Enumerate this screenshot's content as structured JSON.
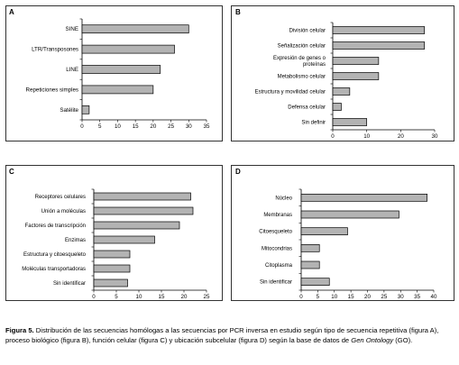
{
  "chart_data": [
    {
      "panel": "A",
      "type": "bar",
      "orientation": "horizontal",
      "categories": [
        "SINE",
        "LTR/Transposones",
        "LINE",
        "Repeticiones simples",
        "Satélite"
      ],
      "values": [
        30,
        26,
        22,
        20,
        2
      ],
      "xlim": [
        0,
        35
      ],
      "xticks": [
        0,
        5,
        10,
        15,
        20,
        25,
        30,
        35
      ],
      "bar_color": "#b3b3b3"
    },
    {
      "panel": "B",
      "type": "bar",
      "orientation": "horizontal",
      "categories": [
        "División celular",
        "Señalización celular",
        "Expresión de genes o proteínas",
        "Metabolismo celular",
        "Estructura y movilidad celular",
        "Defensa celular",
        "Sin definir"
      ],
      "values": [
        27,
        27,
        13.5,
        13.5,
        5,
        2.5,
        10
      ],
      "xlim": [
        0,
        30
      ],
      "xticks": [
        0,
        10,
        20,
        30
      ],
      "bar_color": "#b3b3b3"
    },
    {
      "panel": "C",
      "type": "bar",
      "orientation": "horizontal",
      "categories": [
        "Receptores celulares",
        "Unión a moléculas",
        "Factores de transcripción",
        "Enzimas",
        "Estructura y citoesqueleto",
        "Moléculas transportadoras",
        "Sin identificar"
      ],
      "values": [
        21.5,
        22,
        19,
        13.5,
        8,
        8,
        7.5
      ],
      "xlim": [
        0,
        25
      ],
      "xticks": [
        0,
        5,
        10,
        15,
        20,
        25
      ],
      "bar_color": "#b3b3b3"
    },
    {
      "panel": "D",
      "type": "bar",
      "orientation": "horizontal",
      "categories": [
        "Núcleo",
        "Membranas",
        "Citoesqueleto",
        "Mitocondrias",
        "Citoplasma",
        "Sin identificar"
      ],
      "values": [
        38,
        29.5,
        14,
        5.5,
        5.5,
        8.5
      ],
      "xlim": [
        0,
        40
      ],
      "xticks": [
        0,
        5,
        10,
        15,
        20,
        25,
        30,
        35,
        40
      ],
      "bar_color": "#b3b3b3"
    }
  ],
  "caption": {
    "label": "Figura 5.",
    "text_before_italic": "Distribución de las secuencias homólogas a las secuencias por PCR inversa en estudio según tipo de secuencia repetitiva (figura A), proceso biológico (figura B), función celular (figura C) y ubicación subcelular (figura D) según la base de datos de",
    "italic": "Gen Ontology",
    "text_after_italic": "(GO)."
  }
}
